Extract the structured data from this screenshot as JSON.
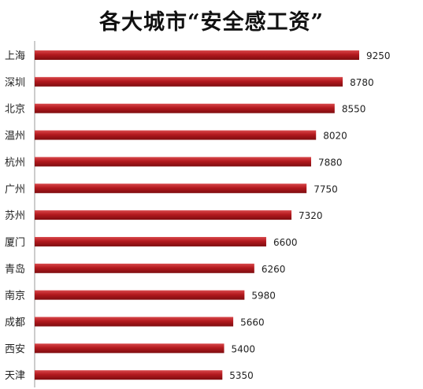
{
  "chart_data": {
    "type": "bar",
    "orientation": "horizontal",
    "title": "各大城市“安全感工资”",
    "xlabel": "",
    "ylabel": "",
    "categories": [
      "上海",
      "深圳",
      "北京",
      "温州",
      "杭州",
      "广州",
      "苏州",
      "厦门",
      "青岛",
      "南京",
      "成都",
      "西安",
      "天津"
    ],
    "values": [
      9250,
      8780,
      8550,
      8020,
      7880,
      7750,
      7320,
      6600,
      6260,
      5980,
      5660,
      5400,
      5350
    ],
    "xlim": [
      0,
      10000
    ],
    "grid": false,
    "legend": "none",
    "data_labels": true,
    "bar_color": "#b3191e",
    "bar_color_light": "#d8484b",
    "bar_color_dark": "#7e0d10"
  }
}
